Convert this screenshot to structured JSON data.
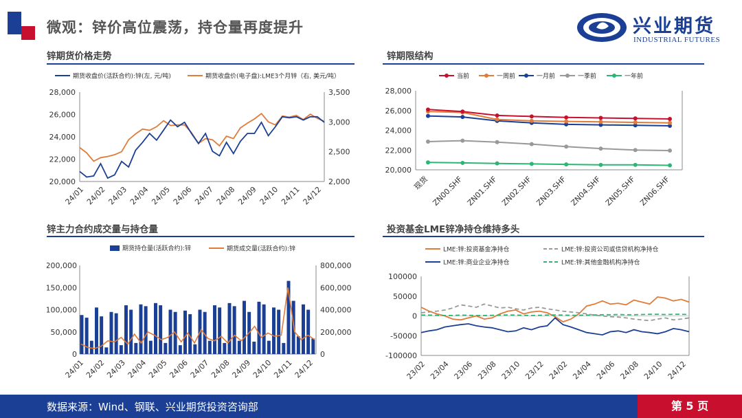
{
  "header": {
    "title": "微观：锌价高位震荡，持仓量再度提升",
    "brand_cn": "兴业期货",
    "brand_en": "INDUSTRIAL FUTURES"
  },
  "footer": {
    "source": "数据来源：Wind、钢联、兴业期货投资咨询部",
    "page": "第 5 页"
  },
  "colors": {
    "navy": "#1a3f94",
    "red": "#c8102e",
    "orange": "#e07b39",
    "gray": "#999999",
    "green": "#2bb673"
  },
  "chart_data": [
    {
      "panel_title": "锌期货价格走势",
      "type": "line",
      "x_tick_labels": [
        "24/01",
        "24/02",
        "24/03",
        "24/04",
        "24/05",
        "24/06",
        "24/07",
        "24/08",
        "24/09",
        "24/10",
        "24/11",
        "24/12"
      ],
      "ylim": [
        20000,
        28000
      ],
      "y_ticks": [
        "20,000",
        "22,000",
        "24,000",
        "26,000",
        "28,000"
      ],
      "y2lim": [
        2000,
        3500
      ],
      "y2_ticks": [
        "2,000",
        "2,500",
        "3,000",
        "3,500"
      ],
      "series": [
        {
          "name": "期货收盘价(活跃合约):锌(左, 元/吨)",
          "axis": "left",
          "color": "#1a3f94",
          "values": [
            20900,
            20400,
            20500,
            21600,
            20300,
            20600,
            21800,
            21300,
            22800,
            23500,
            24300,
            23700,
            24600,
            25500,
            24900,
            25300,
            24300,
            23400,
            24300,
            22700,
            22300,
            23500,
            22500,
            23600,
            24300,
            24300,
            25300,
            24100,
            24900,
            25800,
            25700,
            25800,
            25500,
            25800,
            25800,
            25300
          ]
        },
        {
          "name": "期货收盘价(电子盘):LME3个月锌（右, 美元/吨）",
          "axis": "right",
          "color": "#e07b39",
          "values": [
            2570,
            2480,
            2340,
            2400,
            2420,
            2450,
            2500,
            2700,
            2800,
            2880,
            2860,
            2920,
            3020,
            2940,
            2950,
            2950,
            2820,
            2640,
            2720,
            2700,
            2600,
            2760,
            2720,
            2900,
            2980,
            3050,
            3140,
            3000,
            2950,
            3100,
            3080,
            3110,
            3040,
            3130,
            3060,
            3010
          ]
        }
      ]
    },
    {
      "panel_title": "锌期限结构",
      "type": "line",
      "categories": [
        "现货",
        "ZN00.SHF",
        "ZN01.SHF",
        "ZN02.SHF",
        "ZN03.SHF",
        "ZN04.SHF",
        "ZN05.SHF",
        "ZN06.SHF"
      ],
      "ylim": [
        20000,
        28000
      ],
      "y_ticks": [
        "20,000",
        "22,000",
        "24,000",
        "26,000",
        "28,000"
      ],
      "series": [
        {
          "name": "当前",
          "color": "#c8102e",
          "values": [
            26100,
            25900,
            25500,
            25400,
            25300,
            25250,
            25200,
            25150
          ]
        },
        {
          "name": "一周前",
          "color": "#e07b39",
          "values": [
            25900,
            25800,
            25100,
            24950,
            24900,
            24850,
            24800,
            24750
          ]
        },
        {
          "name": "一月前",
          "color": "#1a3f94",
          "values": [
            25450,
            25350,
            24950,
            24750,
            24600,
            24550,
            24500,
            24450
          ]
        },
        {
          "name": "一季前",
          "color": "#999999",
          "values": [
            22850,
            22950,
            22800,
            22600,
            22350,
            22150,
            22000,
            21950
          ]
        },
        {
          "name": "一年前",
          "color": "#2bb673",
          "values": [
            20750,
            20700,
            20650,
            20600,
            20550,
            20500,
            20500,
            20450
          ]
        }
      ]
    },
    {
      "panel_title": "锌主力合约成交量与持仓量",
      "type": "bar",
      "x_tick_labels": [
        "24/01",
        "24/02",
        "24/03",
        "24/04",
        "24/05",
        "24/06",
        "24/07",
        "24/08",
        "24/09",
        "24/10",
        "24/11",
        "24/12"
      ],
      "ylim": [
        0,
        200000
      ],
      "y_ticks": [
        "0",
        "50,000",
        "100,000",
        "150,000",
        "200,000"
      ],
      "y2lim": [
        0,
        800000
      ],
      "y2_ticks": [
        "0",
        "200,000",
        "400,000",
        "600,000",
        "800,000"
      ],
      "series": [
        {
          "name": "期货持仓量(活跃合约):锌",
          "axis": "left",
          "color": "#1a3f94",
          "values": [
            88000,
            82000,
            30000,
            105000,
            85000,
            15000,
            95000,
            92000,
            20000,
            110000,
            100000,
            25000,
            112000,
            108000,
            30000,
            115000,
            110000,
            25000,
            100000,
            95000,
            20000,
            98000,
            90000,
            22000,
            100000,
            95000,
            30000,
            110000,
            105000,
            25000,
            115000,
            108000,
            30000,
            120000,
            95000,
            28000,
            118000,
            112000,
            30000,
            105000,
            100000,
            25000,
            165000,
            120000,
            40000,
            112000,
            100000,
            35000
          ]
        },
        {
          "name": "期货成交量(活跃合约):锌",
          "axis": "right",
          "color": "#e07b39",
          "values": [
            90000,
            60000,
            50000,
            70000,
            120000,
            110000,
            150000,
            90000,
            180000,
            100000,
            200000,
            170000,
            130000,
            150000,
            200000,
            110000,
            190000,
            100000,
            220000,
            140000,
            120000,
            160000,
            100000,
            170000,
            120000,
            180000,
            250000,
            150000,
            190000,
            160000,
            170000,
            600000,
            200000,
            130000,
            170000,
            130000
          ]
        }
      ]
    },
    {
      "panel_title": "投资基金LME锌净持仓维持多头",
      "type": "line",
      "x_tick_labels": [
        "23/02",
        "23/04",
        "23/06",
        "23/08",
        "23/10",
        "23/12",
        "24/02",
        "24/04",
        "24/06",
        "24/08",
        "24/10",
        "24/12"
      ],
      "ylim": [
        -100000,
        100000
      ],
      "y_ticks": [
        "-100000",
        "-50000",
        "0",
        "50000",
        "100000"
      ],
      "series": [
        {
          "name": "LME:锌:投资基金净持仓",
          "color": "#e07b39",
          "dash": false,
          "values": [
            22000,
            12000,
            5000,
            0,
            -8000,
            -10000,
            -5000,
            0,
            -8000,
            -5000,
            5000,
            12000,
            15000,
            5000,
            10000,
            12000,
            8000,
            -2000,
            -15000,
            -8000,
            5000,
            25000,
            30000,
            38000,
            30000,
            32000,
            28000,
            40000,
            35000,
            30000,
            48000,
            45000,
            38000,
            42000,
            35000
          ]
        },
        {
          "name": "LME:锌:投资公司或信贷机构净持仓",
          "color": "#999999",
          "dash": true,
          "values": [
            8000,
            10000,
            12000,
            15000,
            20000,
            28000,
            25000,
            22000,
            30000,
            25000,
            20000,
            22000,
            18000,
            15000,
            20000,
            22000,
            18000,
            15000,
            12000,
            10000,
            8000,
            5000,
            2000,
            0,
            -2000,
            -3000,
            -5000,
            -8000,
            -10000,
            -12000,
            -8000,
            -5000,
            -10000,
            -8000,
            -5000
          ]
        },
        {
          "name": "LME:锌:商业企业净持仓",
          "color": "#1a3f94",
          "dash": false,
          "values": [
            -42000,
            -38000,
            -35000,
            -28000,
            -25000,
            -22000,
            -20000,
            -25000,
            -28000,
            -30000,
            -35000,
            -40000,
            -38000,
            -30000,
            -35000,
            -28000,
            -25000,
            -5000,
            -22000,
            -28000,
            -35000,
            -42000,
            -45000,
            -48000,
            -40000,
            -38000,
            -42000,
            -35000,
            -40000,
            -42000,
            -45000,
            -40000,
            -32000,
            -35000,
            -40000
          ]
        },
        {
          "name": "LME:锌:其他金融机构净持仓",
          "color": "#2bb673",
          "dash": true,
          "values": [
            2000,
            2000,
            1500,
            1000,
            1000,
            2000,
            1500,
            1000,
            1000,
            1500,
            2000,
            2500,
            2000,
            1500,
            1000,
            1500,
            2000,
            2500,
            2000,
            1500,
            1500,
            2000,
            2500,
            3000,
            3000,
            3500,
            3000,
            3000,
            3500,
            4000,
            4000,
            3500,
            4000,
            4000,
            3500
          ]
        }
      ]
    }
  ]
}
